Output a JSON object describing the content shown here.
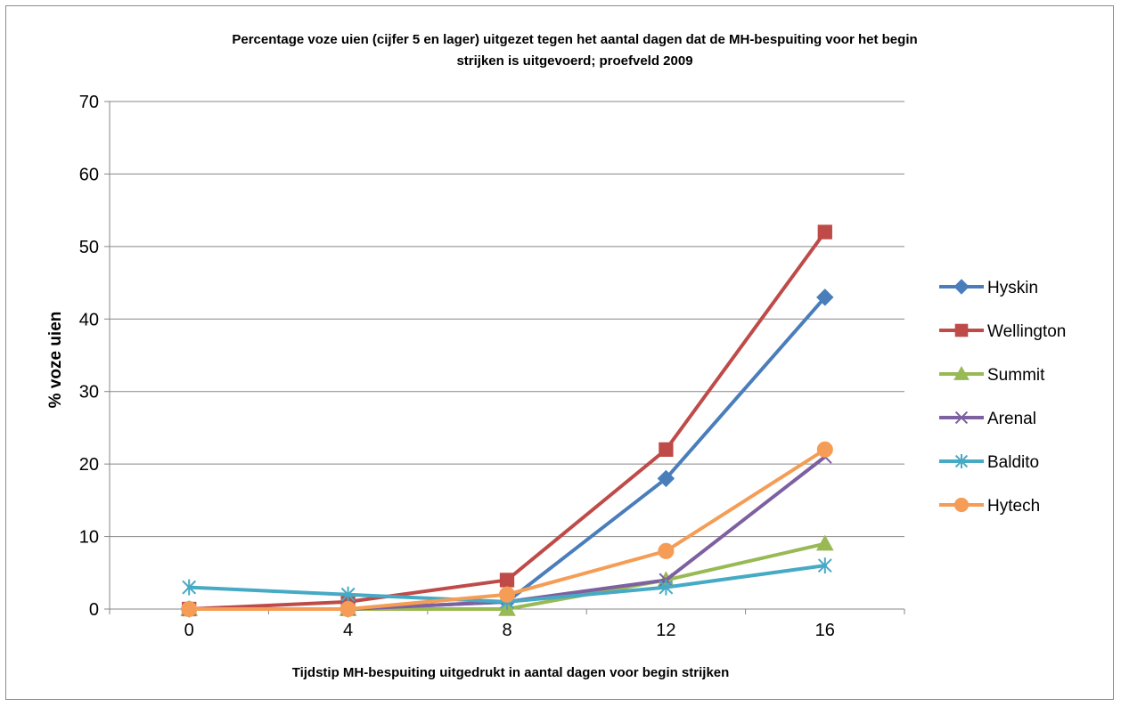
{
  "chart_data": {
    "type": "line",
    "title_line1": "Percentage voze uien (cijfer 5 en lager) uitgezet tegen het aantal dagen dat de MH-bespuiting voor het begin",
    "title_line2": "strijken is uitgevoerd; proefveld 2009",
    "xlabel": "Tijdstip MH-bespuiting uitgedrukt in aantal dagen voor begin strijken",
    "ylabel": "% voze uien",
    "categories": [
      "0",
      "4",
      "8",
      "12",
      "16"
    ],
    "ylim": [
      0,
      70
    ],
    "yticks": [
      "0",
      "10",
      "20",
      "30",
      "40",
      "50",
      "60",
      "70"
    ],
    "grid": true,
    "legend_position": "right",
    "series": [
      {
        "name": "Hyskin",
        "color": "#4a7ebb",
        "marker": "diamond",
        "values": [
          0,
          0,
          1,
          18,
          43
        ]
      },
      {
        "name": "Wellington",
        "color": "#be4b48",
        "marker": "square",
        "values": [
          0,
          1,
          4,
          22,
          52
        ]
      },
      {
        "name": "Summit",
        "color": "#98b954",
        "marker": "triangle",
        "values": [
          0,
          0,
          0,
          4,
          9
        ]
      },
      {
        "name": "Arenal",
        "color": "#7d60a0",
        "marker": "x",
        "values": [
          0,
          0,
          1,
          4,
          21
        ]
      },
      {
        "name": "Baldito",
        "color": "#46aac5",
        "marker": "star",
        "values": [
          3,
          2,
          1,
          3,
          6
        ]
      },
      {
        "name": "Hytech",
        "color": "#f59d56",
        "marker": "circle",
        "values": [
          0,
          0,
          2,
          8,
          22
        ]
      }
    ]
  }
}
